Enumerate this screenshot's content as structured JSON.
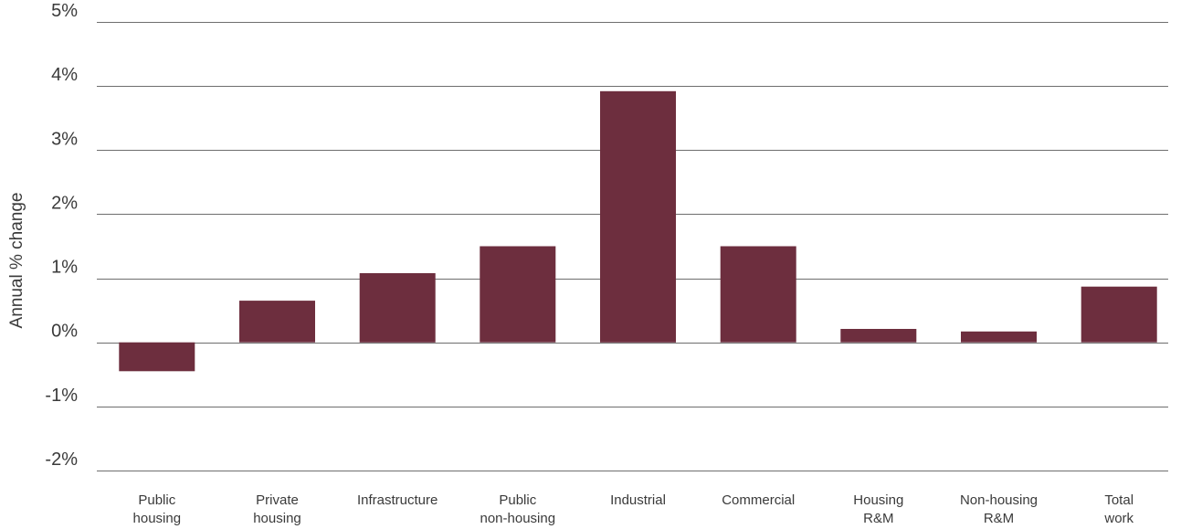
{
  "chart_data": {
    "type": "bar",
    "title": "",
    "xlabel": "",
    "ylabel": "Annual % change",
    "ylim": [
      -2,
      5
    ],
    "yticks": [
      -2,
      -1,
      0,
      1,
      2,
      3,
      4,
      5
    ],
    "ytick_labels": [
      "-2%",
      "-1%",
      "0%",
      "1%",
      "2%",
      "3%",
      "4%",
      "5%"
    ],
    "grid": true,
    "legend": "none",
    "bar_color": "#6d2e3e",
    "categories": [
      [
        "Public",
        "housing"
      ],
      [
        "Private",
        "housing"
      ],
      [
        "Infrastructure"
      ],
      [
        "Public",
        "non-housing"
      ],
      [
        "Industrial"
      ],
      [
        "Commercial"
      ],
      [
        "Housing",
        "R&M"
      ],
      [
        "Non-housing",
        "R&M"
      ],
      [
        "Total",
        "work"
      ]
    ],
    "values": [
      -0.45,
      0.65,
      1.08,
      1.5,
      3.92,
      1.5,
      0.21,
      0.17,
      0.87
    ]
  }
}
